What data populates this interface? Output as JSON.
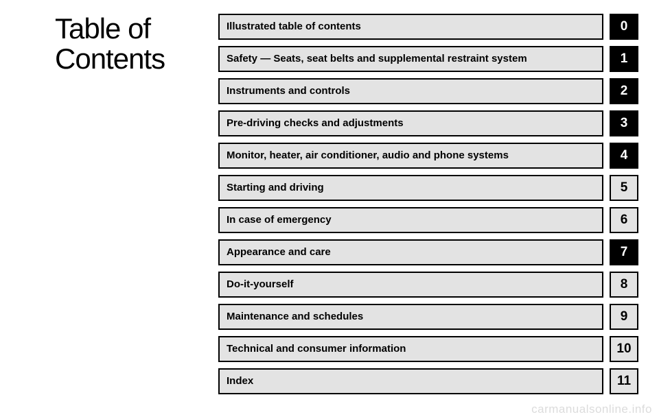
{
  "title": "Table of Contents",
  "items": [
    {
      "label": "Illustrated table of contents",
      "tab": "0",
      "tab_bg": "#000000",
      "tab_color": "#ffffff"
    },
    {
      "label": "Safety — Seats, seat belts and supplemental restraint system",
      "tab": "1",
      "tab_bg": "#000000",
      "tab_color": "#ffffff"
    },
    {
      "label": "Instruments and controls",
      "tab": "2",
      "tab_bg": "#000000",
      "tab_color": "#ffffff"
    },
    {
      "label": "Pre-driving checks and adjustments",
      "tab": "3",
      "tab_bg": "#000000",
      "tab_color": "#ffffff"
    },
    {
      "label": "Monitor, heater, air conditioner, audio and phone systems",
      "tab": "4",
      "tab_bg": "#000000",
      "tab_color": "#ffffff"
    },
    {
      "label": "Starting and driving",
      "tab": "5",
      "tab_bg": "#e3e3e3",
      "tab_color": "#000000"
    },
    {
      "label": "In case of emergency",
      "tab": "6",
      "tab_bg": "#e3e3e3",
      "tab_color": "#000000"
    },
    {
      "label": "Appearance and care",
      "tab": "7",
      "tab_bg": "#000000",
      "tab_color": "#ffffff"
    },
    {
      "label": "Do-it-yourself",
      "tab": "8",
      "tab_bg": "#e3e3e3",
      "tab_color": "#000000"
    },
    {
      "label": "Maintenance and schedules",
      "tab": "9",
      "tab_bg": "#e3e3e3",
      "tab_color": "#000000"
    },
    {
      "label": "Technical and consumer information",
      "tab": "10",
      "tab_bg": "#e3e3e3",
      "tab_color": "#000000"
    },
    {
      "label": "Index",
      "tab": "11",
      "tab_bg": "#e3e3e3",
      "tab_color": "#000000"
    }
  ],
  "label_bg": "#e3e3e3",
  "border_color": "#000000",
  "watermark": "carmanualsonline.info"
}
